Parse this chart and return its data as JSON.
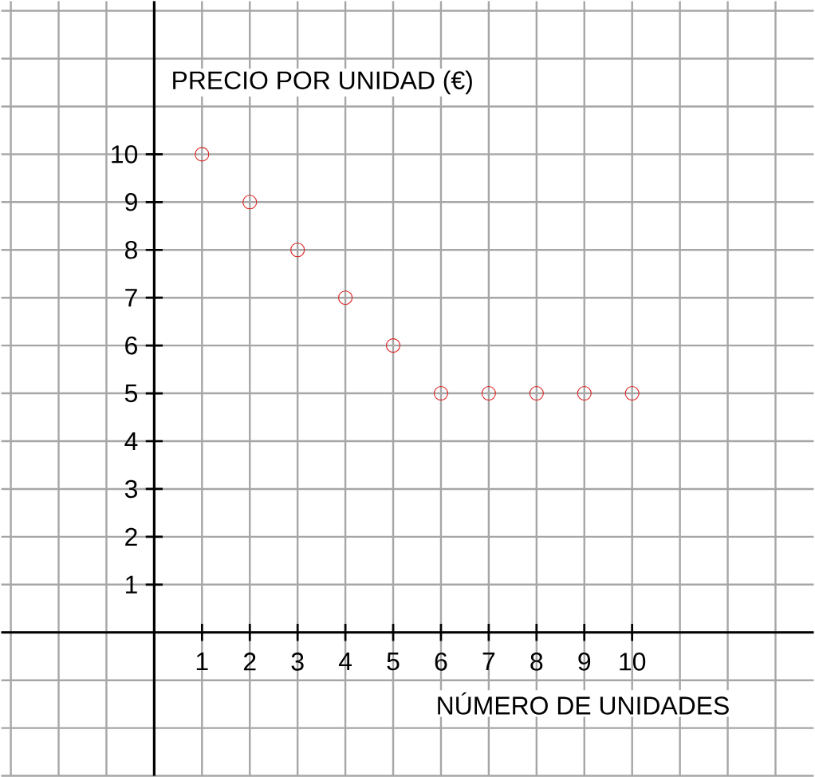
{
  "chart_data": {
    "type": "scatter",
    "xlabel": "NÚMERO DE UNIDADES",
    "ylabel": "PRECIO POR UNIDAD (€)",
    "x": [
      1,
      2,
      3,
      4,
      5,
      6,
      7,
      8,
      9,
      10
    ],
    "values": [
      10,
      9,
      8,
      7,
      6,
      5,
      5,
      5,
      5,
      5
    ],
    "color": "#dd2020",
    "marker": "circle",
    "xlim": [
      -3.2,
      13.8
    ],
    "ylim": [
      -3,
      13.2
    ],
    "xticks": [
      1,
      2,
      3,
      4,
      5,
      6,
      7,
      8,
      9,
      10
    ],
    "yticks": [
      1,
      2,
      3,
      4,
      5,
      6,
      7,
      8,
      9,
      10
    ],
    "grid": true
  }
}
